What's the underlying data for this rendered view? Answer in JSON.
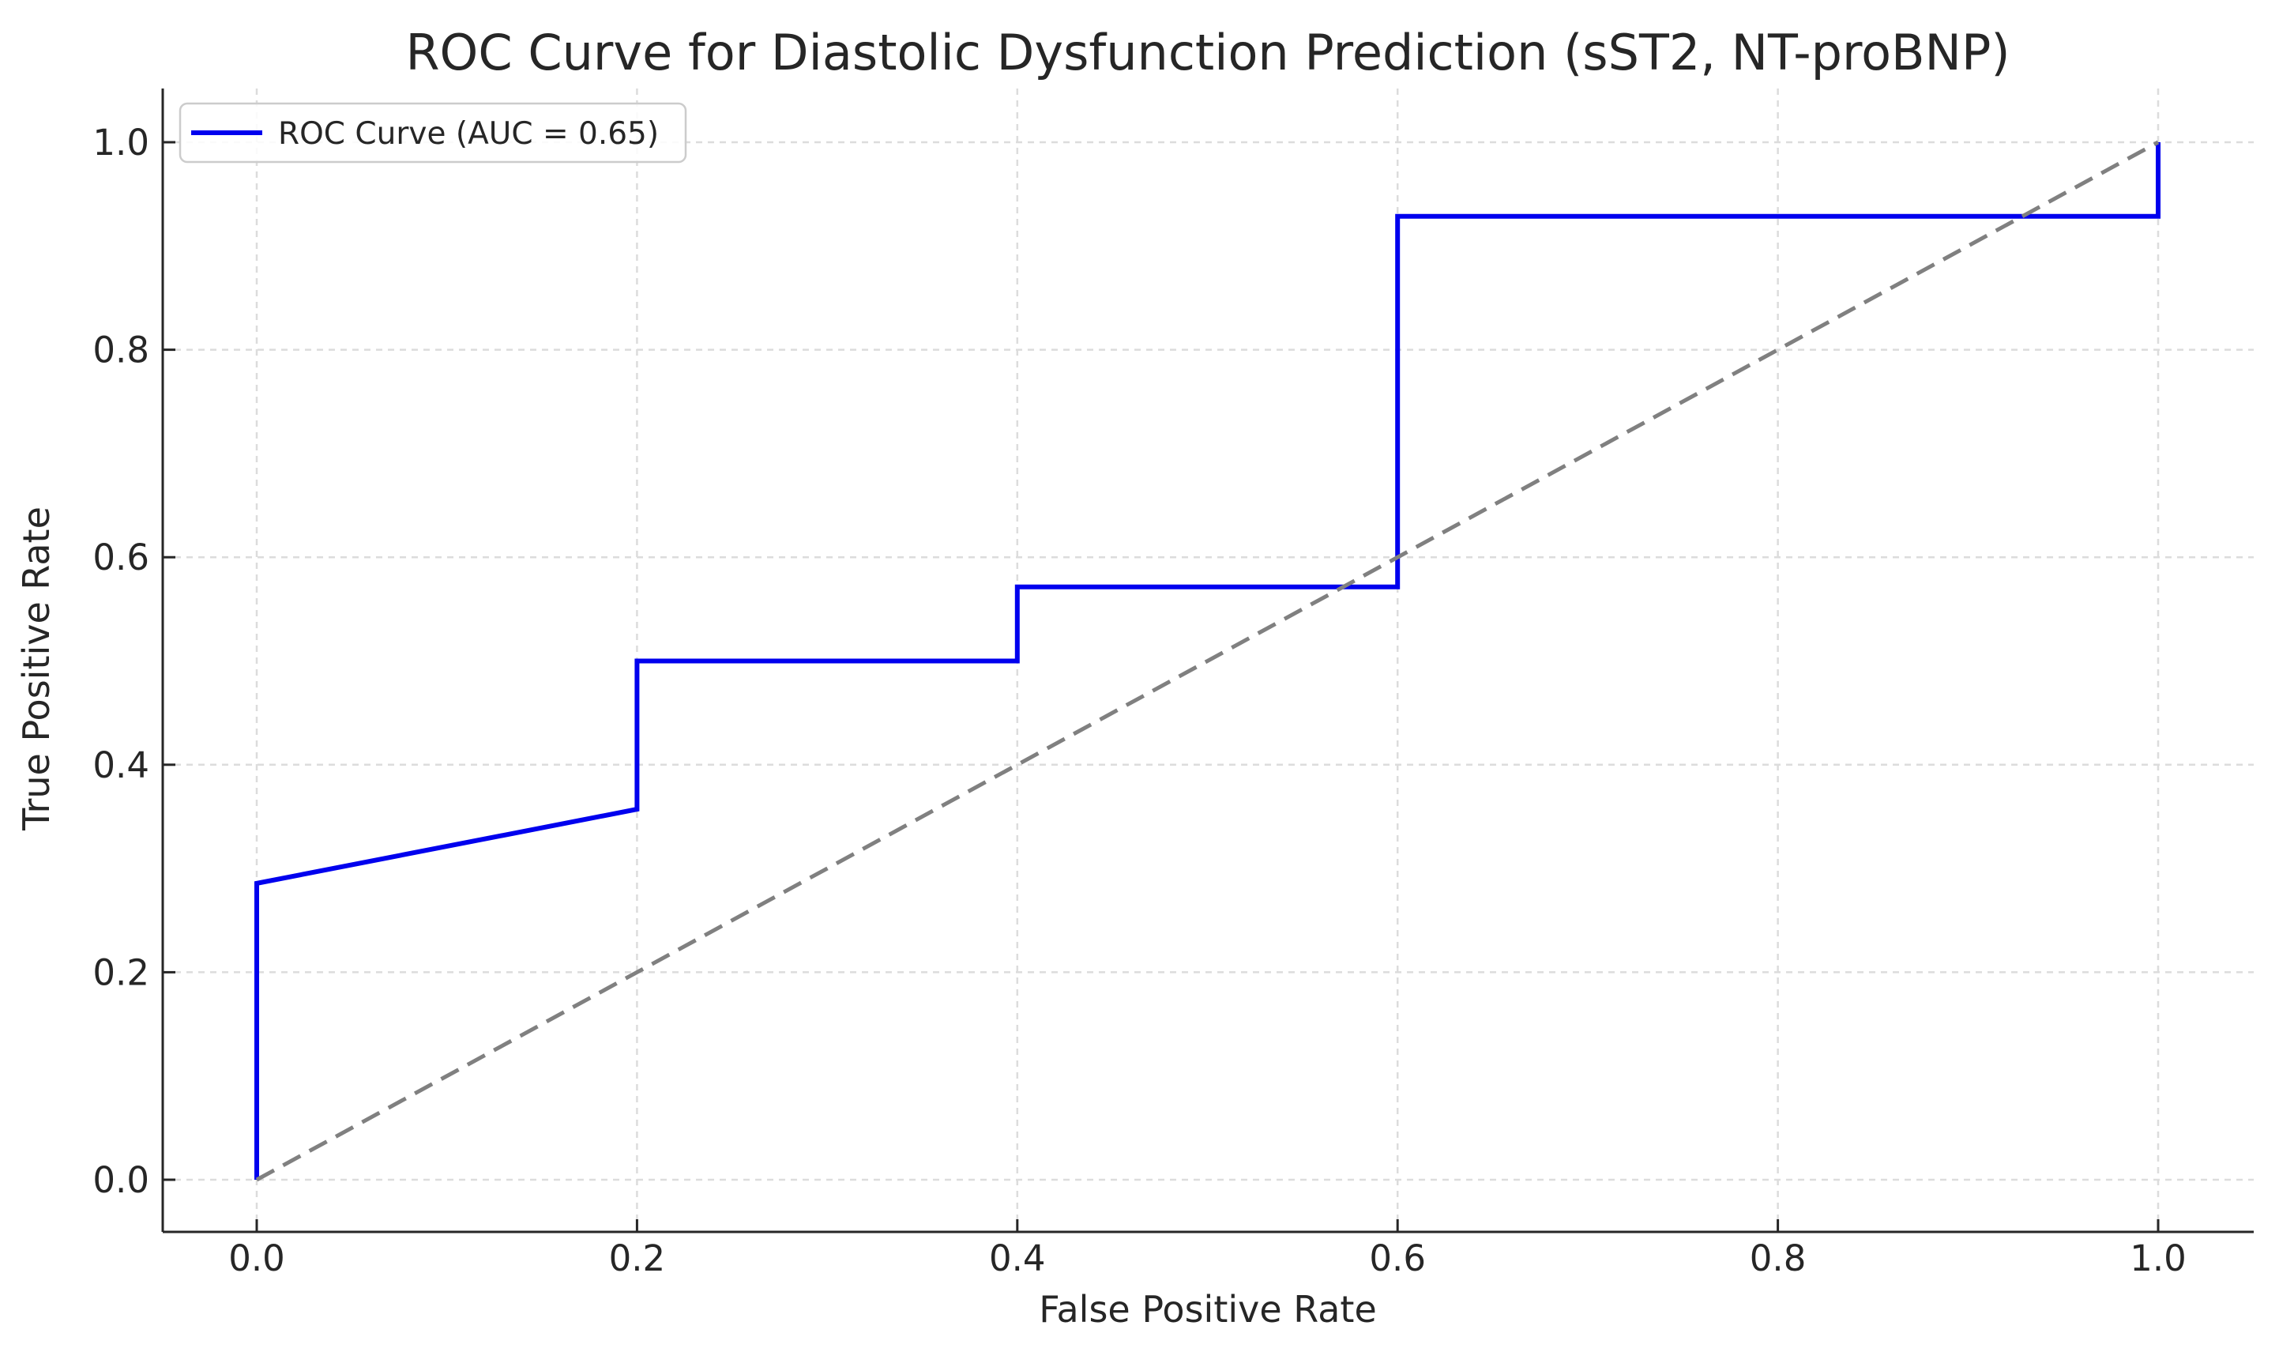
{
  "figure": {
    "background": "#ffffff"
  },
  "chart_data": {
    "type": "line",
    "title": "ROC Curve for Diastolic Dysfunction Prediction (sST2, NT-proBNP)",
    "xlabel": "False Positive Rate",
    "ylabel": "True Positive Rate",
    "xticks": [
      0.0,
      0.2,
      0.4,
      0.6,
      0.8,
      1.0
    ],
    "yticks": [
      0.0,
      0.2,
      0.4,
      0.6,
      0.8,
      1.0
    ],
    "xlim": [
      -0.05,
      1.05
    ],
    "ylim": [
      -0.05,
      1.05
    ],
    "grid": true,
    "grid_linestyle": "dashed",
    "tick_direction": "in",
    "legend_position": "upper left",
    "auc": 0.65,
    "series": [
      {
        "name": "ROC Curve (AUC = 0.65)",
        "role": "roc-curve",
        "color": "#0000ee",
        "linestyle": "solid",
        "linewidth": 6,
        "in_legend": true,
        "x": [
          0.0,
          0.0,
          0.2,
          0.2,
          0.4,
          0.4,
          0.6,
          0.6,
          1.0,
          1.0
        ],
        "y": [
          0.0,
          0.2857,
          0.3571,
          0.5,
          0.5,
          0.5714,
          0.5714,
          0.9286,
          0.9286,
          1.0
        ]
      },
      {
        "name": "Chance diagonal",
        "role": "chance-diagonal",
        "color": "#808080",
        "linestyle": "dashed",
        "linewidth": 5,
        "in_legend": false,
        "x": [
          0.0,
          1.0
        ],
        "y": [
          0.0,
          1.0
        ]
      }
    ],
    "colors": {
      "text": "#262626",
      "spine": "#262626",
      "grid": "#dcdcdc",
      "legend_border": "#cccccc",
      "legend_background": "#ffffff"
    }
  }
}
